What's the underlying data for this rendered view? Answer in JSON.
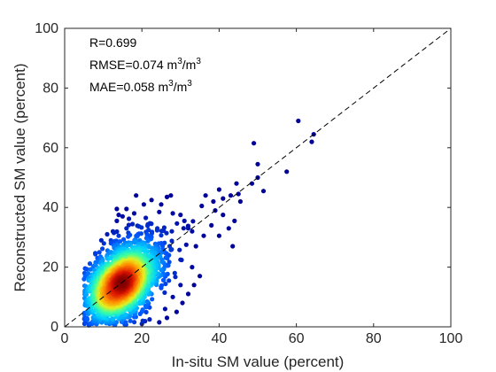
{
  "chart_data": {
    "type": "scatter",
    "title": "",
    "xlabel": "In-situ SM value (percent)",
    "ylabel": "Reconstructed SM value (percent)",
    "xlim": [
      0,
      100
    ],
    "ylim": [
      0,
      100
    ],
    "xticks": [
      "0",
      "20",
      "40",
      "60",
      "80",
      "100"
    ],
    "yticks": [
      "0",
      "20",
      "40",
      "60",
      "80",
      "100"
    ],
    "grid": false,
    "reference_line": "1:1 dashed",
    "color_encoding": "point density (blue = low, red = high)",
    "colors": {
      "low": "#0000aa",
      "mid": "#22ddaa",
      "high": "#880000",
      "line": "#000000"
    },
    "stats": {
      "r": {
        "label": "R=",
        "value": "0.699"
      },
      "rmse": {
        "label": "RMSE=",
        "value": "0.074",
        "unit_base": " m",
        "exp": "3",
        "unit_sep": "/m",
        "exp2": "3"
      },
      "mae": {
        "label": "MAE=",
        "value": "0.058",
        "unit_base": " m",
        "exp": "3",
        "unit_sep": "/m",
        "exp2": "3"
      }
    },
    "points": [
      [
        60.5,
        69
      ],
      [
        64.5,
        64.5
      ],
      [
        64,
        62
      ],
      [
        49,
        61.5
      ],
      [
        57.5,
        52
      ],
      [
        50,
        54.5
      ],
      [
        50,
        50
      ],
      [
        48.5,
        48
      ],
      [
        51.5,
        45.5
      ],
      [
        44.5,
        48
      ],
      [
        45,
        44.5
      ],
      [
        43,
        44
      ],
      [
        40,
        46
      ],
      [
        41,
        43
      ],
      [
        45.5,
        42
      ],
      [
        38.5,
        42
      ],
      [
        36.5,
        44
      ],
      [
        35.5,
        40.5
      ],
      [
        39,
        39
      ],
      [
        41,
        37.5
      ],
      [
        44,
        35.5
      ],
      [
        42.5,
        33
      ],
      [
        40,
        30.5
      ],
      [
        43.5,
        27
      ],
      [
        38,
        34
      ],
      [
        36,
        30.5
      ],
      [
        33,
        32
      ],
      [
        34,
        27
      ],
      [
        31,
        35.5
      ],
      [
        31.5,
        27.5
      ],
      [
        26.5,
        43.5
      ],
      [
        27.5,
        44
      ],
      [
        25,
        41
      ],
      [
        22.5,
        42.5
      ],
      [
        20.5,
        41
      ],
      [
        18.5,
        44
      ],
      [
        16,
        39.5
      ],
      [
        13.5,
        35.5
      ],
      [
        14,
        37.5
      ],
      [
        13.5,
        39.5
      ],
      [
        15,
        37
      ],
      [
        18,
        38
      ],
      [
        21,
        36.5
      ],
      [
        24.5,
        38.5
      ],
      [
        28,
        38
      ],
      [
        30,
        37.5
      ],
      [
        32,
        33
      ],
      [
        24,
        33
      ],
      [
        16,
        33
      ],
      [
        11,
        31
      ],
      [
        12.5,
        32
      ],
      [
        9.5,
        29
      ],
      [
        9,
        25
      ],
      [
        8,
        21
      ],
      [
        7.5,
        17
      ],
      [
        7,
        14
      ],
      [
        8,
        11
      ],
      [
        8.5,
        7.5
      ],
      [
        9.5,
        4
      ],
      [
        10.5,
        2
      ],
      [
        12,
        1.5
      ],
      [
        14,
        3
      ],
      [
        17,
        2
      ],
      [
        20,
        1
      ],
      [
        22,
        2.5
      ],
      [
        24.5,
        1.5
      ],
      [
        26.5,
        3
      ],
      [
        29,
        5
      ],
      [
        30.5,
        8
      ],
      [
        32,
        11
      ],
      [
        33.5,
        14
      ],
      [
        35,
        17
      ],
      [
        33,
        20
      ],
      [
        30,
        22.5
      ],
      [
        27,
        24
      ],
      [
        25,
        28
      ],
      [
        22,
        30
      ],
      [
        19,
        31
      ],
      [
        16.5,
        31.5
      ],
      [
        14,
        30.5
      ],
      [
        12,
        28
      ],
      [
        28,
        10
      ],
      [
        26,
        6
      ],
      [
        22,
        6.5
      ],
      [
        18,
        6
      ],
      [
        15,
        5
      ],
      [
        12,
        5.5
      ],
      [
        30,
        14
      ],
      [
        28.5,
        18
      ],
      [
        26.5,
        20.5
      ],
      [
        24,
        24
      ],
      [
        21,
        27
      ],
      [
        18,
        28.5
      ],
      [
        15,
        27
      ],
      [
        13,
        25
      ],
      [
        11,
        23
      ],
      [
        10,
        20
      ],
      [
        9.5,
        16
      ],
      [
        10,
        12
      ],
      [
        11,
        9
      ],
      [
        13,
        7.5
      ],
      [
        16,
        9
      ],
      [
        19,
        10
      ],
      [
        22,
        11.5
      ],
      [
        25,
        13
      ],
      [
        27,
        15.5
      ],
      [
        25.5,
        17.5
      ],
      [
        23,
        20
      ],
      [
        20.5,
        22.5
      ],
      [
        18,
        24
      ],
      [
        15.5,
        23
      ],
      [
        13,
        21.5
      ],
      [
        11.5,
        19
      ],
      [
        11,
        16
      ],
      [
        11.5,
        13
      ],
      [
        13,
        11
      ],
      [
        15.5,
        11.5
      ],
      [
        18,
        13
      ],
      [
        20.5,
        14.5
      ],
      [
        22.5,
        16
      ],
      [
        21.5,
        18.5
      ],
      [
        19,
        20.5
      ],
      [
        16.5,
        20
      ],
      [
        14,
        18.5
      ],
      [
        12.5,
        16
      ],
      [
        12.5,
        13.5
      ],
      [
        14.5,
        13
      ],
      [
        17,
        14.5
      ],
      [
        19.5,
        16.5
      ],
      [
        18,
        18
      ],
      [
        15.5,
        17
      ],
      [
        13.5,
        15
      ],
      [
        14,
        12
      ],
      [
        16,
        15
      ],
      [
        17.5,
        16.5
      ],
      [
        16,
        13
      ],
      [
        13,
        10.5
      ],
      [
        12,
        11.5
      ],
      [
        11.5,
        10
      ],
      [
        10.5,
        8.5
      ],
      [
        12,
        8
      ],
      [
        13.5,
        9
      ],
      [
        15,
        10
      ],
      [
        10.5,
        11
      ]
    ]
  }
}
